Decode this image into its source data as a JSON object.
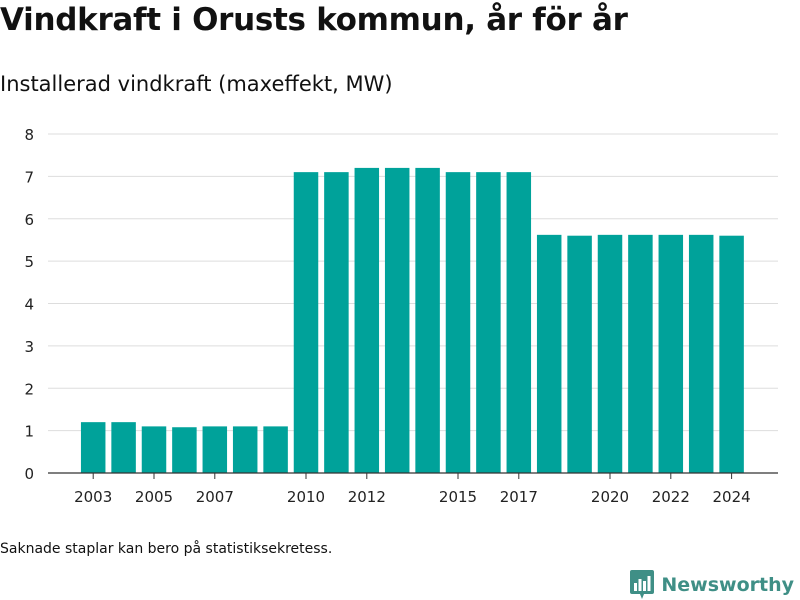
{
  "title": "Vindkraft i Orusts kommun, år för år",
  "subtitle": "Installerad vindkraft (maxeffekt, MW)",
  "footnote": "Saknade staplar kan bero på statistiksekretess.",
  "brand": {
    "name": "Newsworthy",
    "icon": "bar-chart-logo-icon",
    "color": "#3f8f86"
  },
  "colors": {
    "bar": "#00a29a",
    "grid": "#dddddd",
    "axis": "#333333"
  },
  "chart_data": {
    "type": "bar",
    "title": "Vindkraft i Orusts kommun, år för år",
    "subtitle": "Installerad vindkraft (maxeffekt, MW)",
    "xlabel": "",
    "ylabel": "",
    "ylim": [
      0,
      8
    ],
    "yticks": [
      0,
      1,
      2,
      3,
      4,
      5,
      6,
      7,
      8
    ],
    "xtick_labels": [
      "2003",
      "2005",
      "2007",
      "2010",
      "2012",
      "2015",
      "2017",
      "2020",
      "2022",
      "2024"
    ],
    "grid": true,
    "legend": "none",
    "categories": [
      "2003",
      "2004",
      "2005",
      "2006",
      "2007",
      "2008",
      "2009",
      "2010",
      "2011",
      "2012",
      "2013",
      "2014",
      "2015",
      "2016",
      "2017",
      "2018",
      "2019",
      "2020",
      "2021",
      "2022",
      "2023",
      "2024"
    ],
    "values": [
      1.2,
      1.2,
      1.1,
      1.08,
      1.1,
      1.1,
      1.1,
      7.1,
      7.1,
      7.2,
      7.2,
      7.2,
      7.1,
      7.1,
      7.1,
      5.62,
      5.6,
      5.62,
      5.62,
      5.62,
      5.62,
      5.6
    ]
  }
}
